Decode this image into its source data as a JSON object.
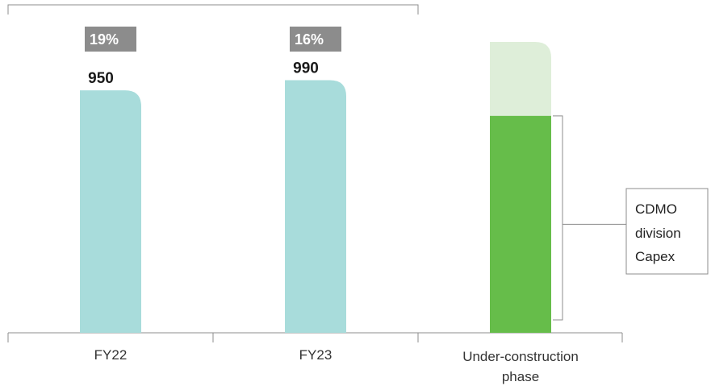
{
  "chart_data": {
    "type": "bar",
    "title": "",
    "xlabel": "",
    "ylabel": "",
    "categories": [
      "FY22",
      "FY23",
      "Under-construction phase"
    ],
    "category_lines": [
      [
        "FY22"
      ],
      [
        "FY23"
      ],
      [
        "Under-construction",
        "phase"
      ]
    ],
    "values": [
      950,
      990,
      null
    ],
    "value_labels": [
      "950",
      "990",
      ""
    ],
    "badges": [
      "19%",
      "16%",
      ""
    ],
    "stacked_third": {
      "base_value": 850,
      "top_value": 1140
    },
    "annotation": {
      "lines": [
        "CDMO",
        "division",
        "Capex"
      ]
    },
    "ylim": [
      0,
      1200
    ],
    "grid": false,
    "legend": "none",
    "colors": {
      "bar": "#a8dcdb",
      "green": "#66bd4a",
      "light_green": "#deeed9",
      "badge": "#8c8c8c",
      "axis": "#8c8c8c"
    }
  }
}
